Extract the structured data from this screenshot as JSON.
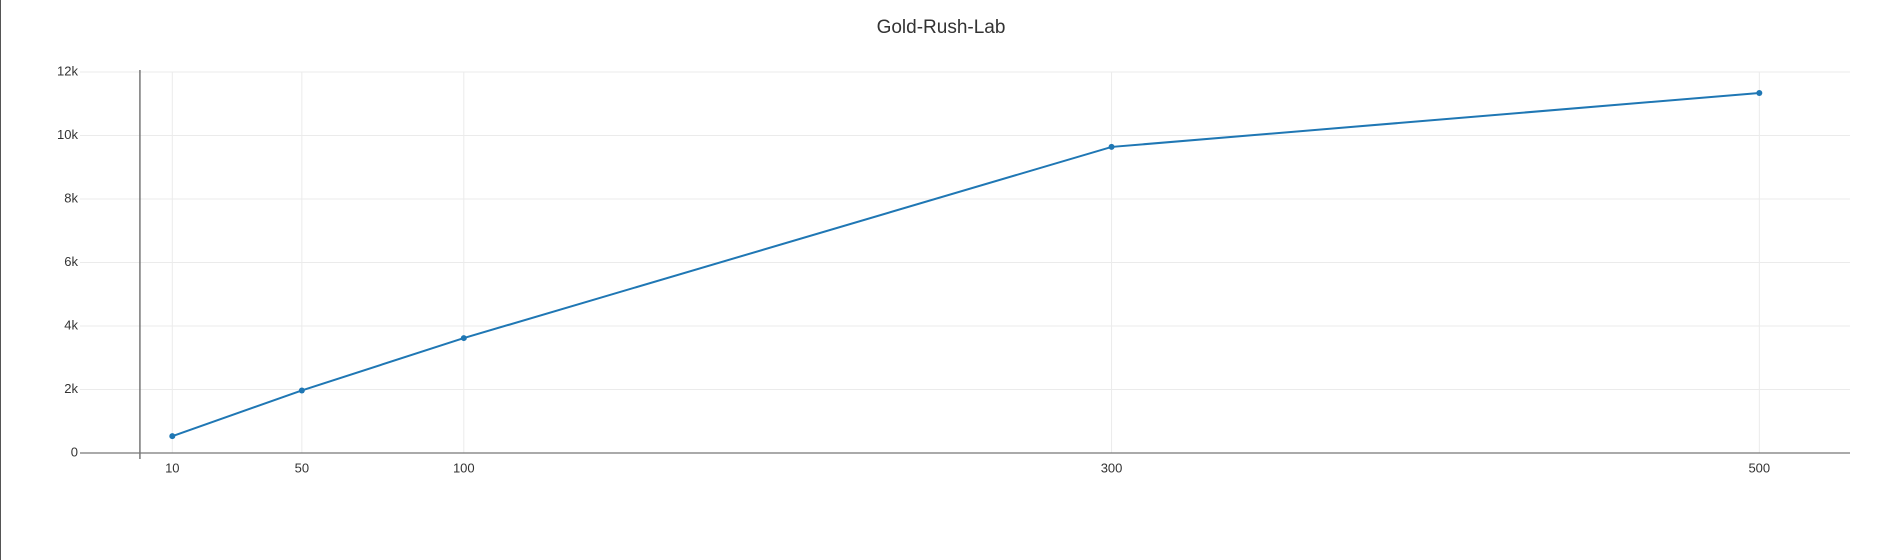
{
  "chart_data": {
    "type": "line",
    "title": "Gold-Rush-Lab",
    "x": [
      10,
      50,
      100,
      300,
      500
    ],
    "series": [
      {
        "color": "#1f77b4",
        "values": [
          530,
          1970,
          3620,
          9640,
          11340
        ]
      }
    ],
    "xlim": [
      -18.5,
      528
    ],
    "xticks": [
      10,
      50,
      100,
      300,
      500
    ],
    "ylim": [
      0,
      12000
    ],
    "yticks": [
      0,
      {
        "value": 2000,
        "label": "2k"
      },
      {
        "value": 4000,
        "label": "4k"
      },
      {
        "value": 6000,
        "label": "6k"
      },
      {
        "value": 8000,
        "label": "8k"
      },
      {
        "value": 10000,
        "label": "10k"
      },
      {
        "value": 12000,
        "label": "12k"
      }
    ],
    "grid": true
  }
}
